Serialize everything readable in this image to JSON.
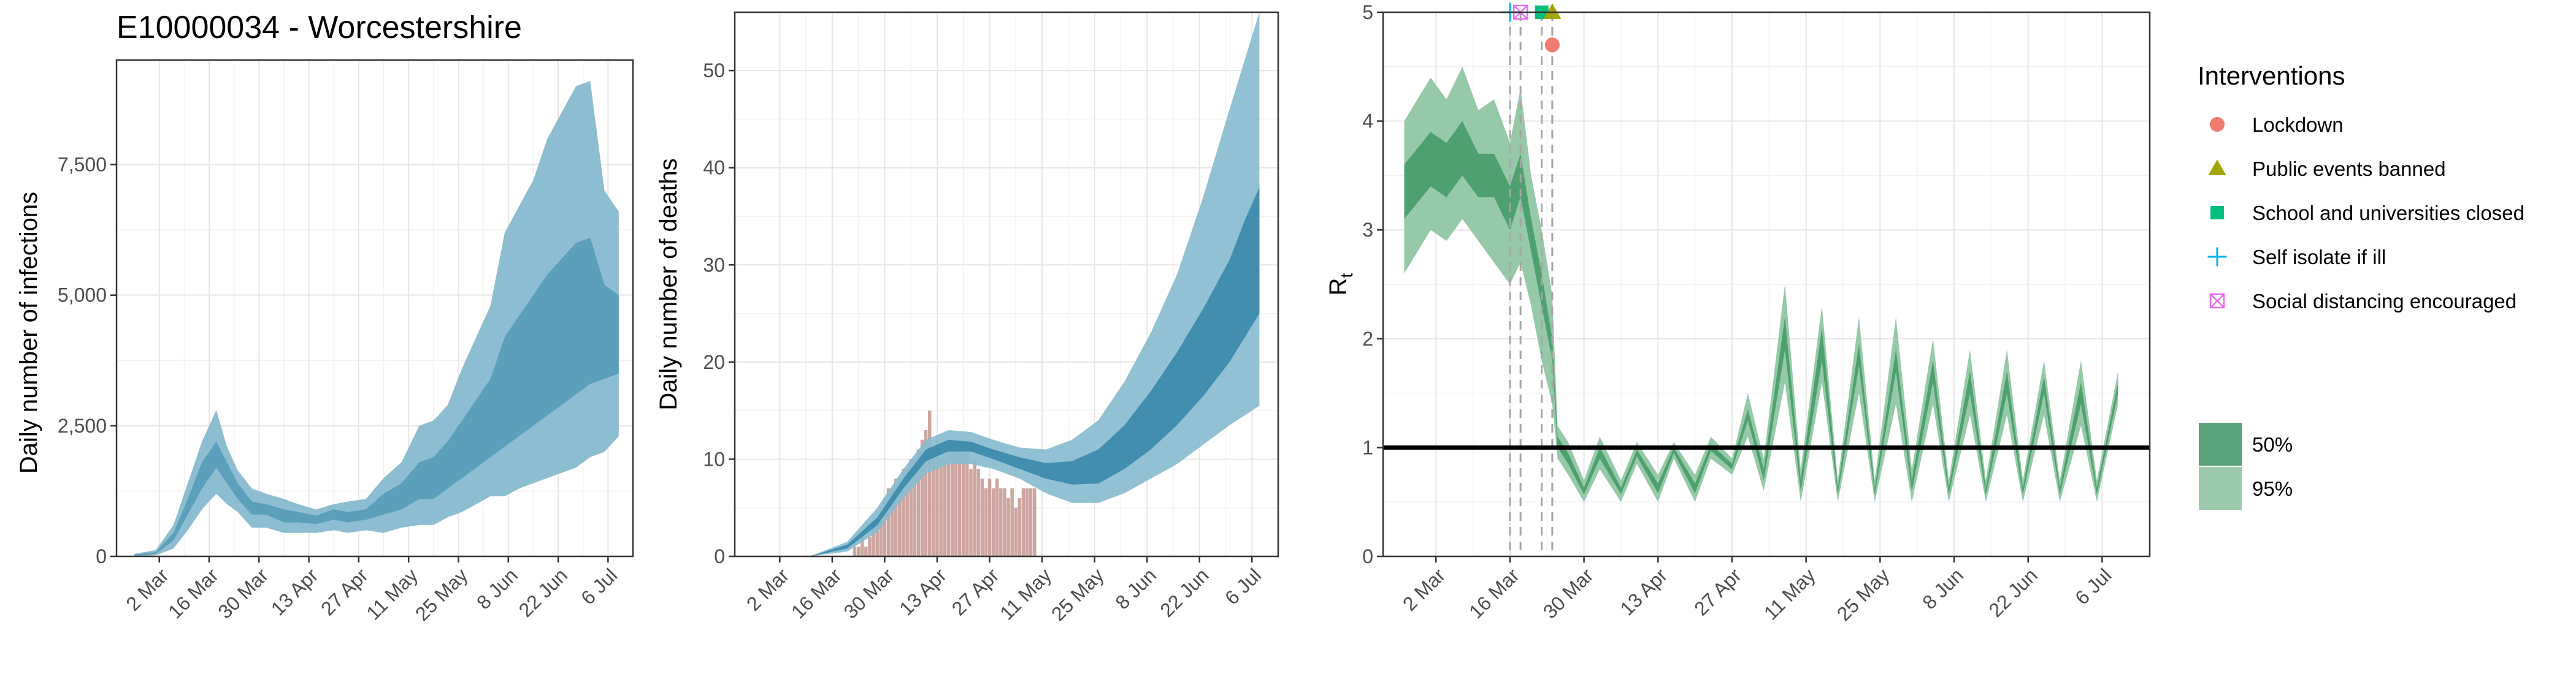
{
  "title": "E10000034 - Worcestershire",
  "colors": {
    "infections_ci95": "#8dbdd0",
    "infections_ci50": "#5b9fbb",
    "deaths_ci95": "#88bccf",
    "deaths_ci50": "#3b8aab",
    "deaths_bars": "#c4968e",
    "rt_ci95": "#95c9a7",
    "rt_ci50": "#4fa06f",
    "lockdown": "#f07b70",
    "public_events": "#a3a500",
    "schools": "#00bf7d",
    "self_isolate": "#00b0f6",
    "social_distancing": "#e76bf3",
    "grid_major": "#e6e6e6",
    "grid_minor": "#f2f2f2"
  },
  "chart_data": [
    {
      "id": "infections",
      "type": "area",
      "title": "E10000034 - Worcestershire",
      "xlabel": "",
      "ylabel": "Daily number of infections",
      "x_ticks": [
        "2 Mar",
        "16 Mar",
        "30 Mar",
        "13 Apr",
        "27 Apr",
        "11 May",
        "25 May",
        "8 Jun",
        "22 Jun",
        "6 Jul"
      ],
      "x_range": [
        "2020-02-19",
        "2020-07-13"
      ],
      "y_ticks": [
        "0",
        "2,500",
        "5,000",
        "7,500"
      ],
      "ylim": [
        0,
        9500
      ],
      "grid": true,
      "series": [
        {
          "name": "95%",
          "kind": "band",
          "x": [
            "2020-02-24",
            "2020-03-01",
            "2020-03-06",
            "2020-03-10",
            "2020-03-14",
            "2020-03-18",
            "2020-03-21",
            "2020-03-24",
            "2020-03-28",
            "2020-04-01",
            "2020-04-06",
            "2020-04-10",
            "2020-04-15",
            "2020-04-20",
            "2020-04-24",
            "2020-04-29",
            "2020-05-04",
            "2020-05-09",
            "2020-05-14",
            "2020-05-18",
            "2020-05-22",
            "2020-05-26",
            "2020-05-30",
            "2020-06-03",
            "2020-06-07",
            "2020-06-11",
            "2020-06-15",
            "2020-06-19",
            "2020-06-23",
            "2020-06-27",
            "2020-07-01",
            "2020-07-05",
            "2020-07-09"
          ],
          "low": [
            0,
            20,
            150,
            500,
            900,
            1200,
            1000,
            850,
            550,
            550,
            450,
            450,
            450,
            500,
            450,
            500,
            450,
            550,
            600,
            600,
            750,
            850,
            1000,
            1150,
            1150,
            1300,
            1400,
            1500,
            1600,
            1700,
            1900,
            2000,
            2300
          ],
          "high": [
            50,
            120,
            600,
            1400,
            2200,
            2800,
            2100,
            1650,
            1300,
            1200,
            1100,
            1000,
            900,
            1000,
            1050,
            1100,
            1500,
            1800,
            2500,
            2600,
            2900,
            3600,
            4200,
            4800,
            6200,
            6700,
            7200,
            8000,
            8500,
            9000,
            9100,
            7000,
            6600
          ]
        },
        {
          "name": "50%",
          "kind": "band",
          "x": [
            "2020-02-24",
            "2020-03-01",
            "2020-03-06",
            "2020-03-10",
            "2020-03-14",
            "2020-03-18",
            "2020-03-21",
            "2020-03-24",
            "2020-03-28",
            "2020-04-01",
            "2020-04-06",
            "2020-04-10",
            "2020-04-15",
            "2020-04-20",
            "2020-04-24",
            "2020-04-29",
            "2020-05-04",
            "2020-05-09",
            "2020-05-14",
            "2020-05-18",
            "2020-05-22",
            "2020-05-26",
            "2020-05-30",
            "2020-06-03",
            "2020-06-07",
            "2020-06-11",
            "2020-06-15",
            "2020-06-19",
            "2020-06-23",
            "2020-06-27",
            "2020-07-01",
            "2020-07-05",
            "2020-07-09"
          ],
          "low": [
            10,
            50,
            300,
            800,
            1300,
            1700,
            1400,
            1100,
            800,
            800,
            650,
            650,
            620,
            700,
            650,
            700,
            800,
            900,
            1100,
            1100,
            1300,
            1500,
            1700,
            1900,
            2100,
            2300,
            2500,
            2700,
            2900,
            3100,
            3300,
            3400,
            3500
          ],
          "high": [
            30,
            80,
            450,
            1100,
            1800,
            2200,
            1800,
            1400,
            1050,
            1000,
            900,
            850,
            780,
            900,
            850,
            900,
            1200,
            1400,
            1800,
            1900,
            2200,
            2600,
            3000,
            3400,
            4200,
            4600,
            5000,
            5400,
            5700,
            6000,
            6100,
            5200,
            5000
          ]
        }
      ]
    },
    {
      "id": "deaths",
      "type": "area",
      "xlabel": "",
      "ylabel": "Daily number of deaths",
      "x_ticks": [
        "2 Mar",
        "16 Mar",
        "30 Mar",
        "13 Apr",
        "27 Apr",
        "11 May",
        "25 May",
        "8 Jun",
        "22 Jun",
        "6 Jul"
      ],
      "x_range": [
        "2020-02-19",
        "2020-07-13"
      ],
      "y_ticks": [
        "0",
        "10",
        "20",
        "30",
        "40",
        "50"
      ],
      "ylim": [
        0,
        56
      ],
      "grid": true,
      "bars": {
        "name": "Reported deaths",
        "start": "2020-03-20",
        "values": [
          0,
          0,
          1,
          1,
          2,
          1,
          2,
          3,
          4,
          5,
          6,
          7,
          7,
          8,
          8,
          9,
          9,
          10,
          10,
          11,
          12,
          13,
          15,
          11,
          12,
          10,
          10,
          11,
          12,
          11,
          12,
          11,
          12,
          9,
          10,
          9,
          8,
          7,
          8,
          7,
          8,
          7,
          7,
          6,
          7,
          5,
          6,
          7,
          7,
          7,
          7
        ]
      },
      "series": [
        {
          "name": "95%",
          "kind": "band",
          "x": [
            "2020-03-10",
            "2020-03-20",
            "2020-03-28",
            "2020-04-04",
            "2020-04-10",
            "2020-04-16",
            "2020-04-22",
            "2020-04-28",
            "2020-05-05",
            "2020-05-12",
            "2020-05-19",
            "2020-05-26",
            "2020-06-02",
            "2020-06-09",
            "2020-06-16",
            "2020-06-23",
            "2020-06-30",
            "2020-07-04",
            "2020-07-08"
          ],
          "low": [
            0,
            0.5,
            2.5,
            6,
            8.5,
            9.5,
            9.5,
            9,
            8,
            6.5,
            5.5,
            5.5,
            6.5,
            8,
            9.5,
            11.5,
            13.5,
            14.5,
            15.5
          ],
          "high": [
            0,
            1.5,
            5,
            9,
            12,
            13,
            12.8,
            12,
            11.2,
            11,
            12,
            14,
            18,
            23,
            29,
            37,
            46,
            51,
            56
          ]
        },
        {
          "name": "50%",
          "kind": "band",
          "x": [
            "2020-03-10",
            "2020-03-20",
            "2020-03-28",
            "2020-04-04",
            "2020-04-10",
            "2020-04-16",
            "2020-04-22",
            "2020-04-28",
            "2020-05-05",
            "2020-05-12",
            "2020-05-19",
            "2020-05-26",
            "2020-06-02",
            "2020-06-09",
            "2020-06-16",
            "2020-06-23",
            "2020-06-30",
            "2020-07-04",
            "2020-07-08"
          ],
          "low": [
            0,
            0.8,
            3.2,
            7,
            9.8,
            10.8,
            10.8,
            10,
            9,
            8,
            7.4,
            7.5,
            9,
            11,
            13.5,
            16.5,
            20,
            22.5,
            25
          ],
          "high": [
            0,
            1.2,
            4,
            8,
            11,
            12,
            11.8,
            11,
            10.2,
            9.6,
            9.8,
            11,
            13.5,
            17,
            21,
            25.5,
            30.5,
            34.5,
            38
          ]
        }
      ]
    },
    {
      "id": "rt",
      "type": "area",
      "xlabel": "",
      "ylabel": "R",
      "ylabel_subscript": "t",
      "x_ticks": [
        "2 Mar",
        "16 Mar",
        "30 Mar",
        "13 Apr",
        "27 Apr",
        "11 May",
        "25 May",
        "8 Jun",
        "22 Jun",
        "6 Jul"
      ],
      "x_range": [
        "2020-02-21",
        "2020-07-15"
      ],
      "y_ticks": [
        "0",
        "1",
        "2",
        "3",
        "4",
        "5"
      ],
      "ylim": [
        0,
        5
      ],
      "grid": true,
      "reference_line": 1,
      "intervention_dates": [
        "2020-03-16",
        "2020-03-18",
        "2020-03-22",
        "2020-03-24"
      ],
      "series": [
        {
          "name": "95%",
          "kind": "band",
          "x": [
            "2020-02-25",
            "2020-03-01",
            "2020-03-04",
            "2020-03-07",
            "2020-03-10",
            "2020-03-13",
            "2020-03-16",
            "2020-03-18",
            "2020-03-20",
            "2020-03-22",
            "2020-03-24",
            "2020-03-25",
            "2020-03-27",
            "2020-03-30",
            "2020-04-02",
            "2020-04-06",
            "2020-04-09",
            "2020-04-13",
            "2020-04-16",
            "2020-04-20",
            "2020-04-23",
            "2020-04-27",
            "2020-04-30",
            "2020-05-03",
            "2020-05-07",
            "2020-05-10",
            "2020-05-14",
            "2020-05-17",
            "2020-05-21",
            "2020-05-24",
            "2020-05-28",
            "2020-05-31",
            "2020-06-04",
            "2020-06-07",
            "2020-06-11",
            "2020-06-14",
            "2020-06-18",
            "2020-06-21",
            "2020-06-25",
            "2020-06-28",
            "2020-07-02",
            "2020-07-05",
            "2020-07-09"
          ],
          "low": [
            2.6,
            3.0,
            2.9,
            3.1,
            2.9,
            2.7,
            2.5,
            2.7,
            2.3,
            1.8,
            1.4,
            0.9,
            0.75,
            0.5,
            0.8,
            0.5,
            0.85,
            0.5,
            0.9,
            0.5,
            0.9,
            0.75,
            1.1,
            0.6,
            1.6,
            0.5,
            1.6,
            0.5,
            1.5,
            0.5,
            1.4,
            0.5,
            1.4,
            0.5,
            1.3,
            0.5,
            1.3,
            0.5,
            1.3,
            0.5,
            1.2,
            0.5,
            1.4
          ],
          "high": [
            4.0,
            4.4,
            4.2,
            4.5,
            4.1,
            4.2,
            3.8,
            4.3,
            3.5,
            3.0,
            2.4,
            1.2,
            1.05,
            0.7,
            1.1,
            0.7,
            1.05,
            0.75,
            1.05,
            0.75,
            1.1,
            0.9,
            1.5,
            0.9,
            2.5,
            0.8,
            2.3,
            0.7,
            2.2,
            0.7,
            2.2,
            0.8,
            2.0,
            0.7,
            1.9,
            0.7,
            1.9,
            0.7,
            1.8,
            0.7,
            1.8,
            0.7,
            1.7
          ]
        },
        {
          "name": "50%",
          "kind": "band",
          "x": [
            "2020-02-25",
            "2020-03-01",
            "2020-03-04",
            "2020-03-07",
            "2020-03-10",
            "2020-03-13",
            "2020-03-16",
            "2020-03-18",
            "2020-03-20",
            "2020-03-22",
            "2020-03-24",
            "2020-03-25",
            "2020-03-27",
            "2020-03-30",
            "2020-04-02",
            "2020-04-06",
            "2020-04-09",
            "2020-04-13",
            "2020-04-16",
            "2020-04-20",
            "2020-04-23",
            "2020-04-27",
            "2020-04-30",
            "2020-05-03",
            "2020-05-07",
            "2020-05-10",
            "2020-05-14",
            "2020-05-17",
            "2020-05-21",
            "2020-05-24",
            "2020-05-28",
            "2020-05-31",
            "2020-06-04",
            "2020-06-07",
            "2020-06-11",
            "2020-06-14",
            "2020-06-18",
            "2020-06-21",
            "2020-06-25",
            "2020-06-28",
            "2020-07-02",
            "2020-07-05",
            "2020-07-09"
          ],
          "low": [
            3.1,
            3.4,
            3.3,
            3.5,
            3.3,
            3.3,
            3.0,
            3.3,
            2.8,
            2.3,
            1.8,
            1.0,
            0.85,
            0.57,
            0.9,
            0.57,
            0.92,
            0.58,
            0.95,
            0.58,
            0.97,
            0.8,
            1.25,
            0.7,
            1.9,
            0.6,
            1.8,
            0.57,
            1.75,
            0.57,
            1.7,
            0.6,
            1.6,
            0.57,
            1.5,
            0.57,
            1.5,
            0.57,
            1.5,
            0.57,
            1.4,
            0.57,
            1.5
          ],
          "high": [
            3.6,
            3.9,
            3.8,
            4.0,
            3.7,
            3.7,
            3.4,
            3.7,
            3.1,
            2.6,
            2.0,
            1.1,
            0.95,
            0.63,
            1.0,
            0.63,
            0.98,
            0.67,
            1.0,
            0.67,
            1.03,
            0.85,
            1.35,
            0.8,
            2.2,
            0.7,
            2.1,
            0.63,
            1.95,
            0.63,
            1.9,
            0.7,
            1.8,
            0.63,
            1.7,
            0.63,
            1.7,
            0.63,
            1.65,
            0.63,
            1.6,
            0.63,
            1.6
          ]
        }
      ],
      "markers": [
        {
          "name": "Self isolate if ill",
          "date": "2020-03-16",
          "y": 5.0,
          "shape": "plus",
          "color": "#00b0f6"
        },
        {
          "name": "Social distancing encouraged",
          "date": "2020-03-18",
          "y": 5.0,
          "shape": "boxx",
          "color": "#e76bf3"
        },
        {
          "name": "School and universities closed",
          "date": "2020-03-22",
          "y": 5.0,
          "shape": "square",
          "color": "#00bf7d"
        },
        {
          "name": "Public events banned",
          "date": "2020-03-24",
          "y": 5.0,
          "shape": "triangle",
          "color": "#a3a500"
        },
        {
          "name": "Lockdown",
          "date": "2020-03-24",
          "y": 4.7,
          "shape": "circle",
          "color": "#f07b70"
        }
      ]
    }
  ],
  "legend": {
    "interventions_title": "Interventions",
    "interventions": [
      {
        "label": "Lockdown",
        "shape": "circle",
        "color": "#f07b70"
      },
      {
        "label": "Public events banned",
        "shape": "triangle",
        "color": "#a3a500"
      },
      {
        "label": "School and universities closed",
        "shape": "square",
        "color": "#00bf7d"
      },
      {
        "label": "Self isolate if ill",
        "shape": "plus",
        "color": "#00b0f6"
      },
      {
        "label": "Social distancing encouraged",
        "shape": "boxx",
        "color": "#e76bf3"
      }
    ],
    "ci": [
      {
        "label": "50%",
        "color": "#5aa27a"
      },
      {
        "label": "95%",
        "color": "#9bcaad"
      }
    ]
  }
}
